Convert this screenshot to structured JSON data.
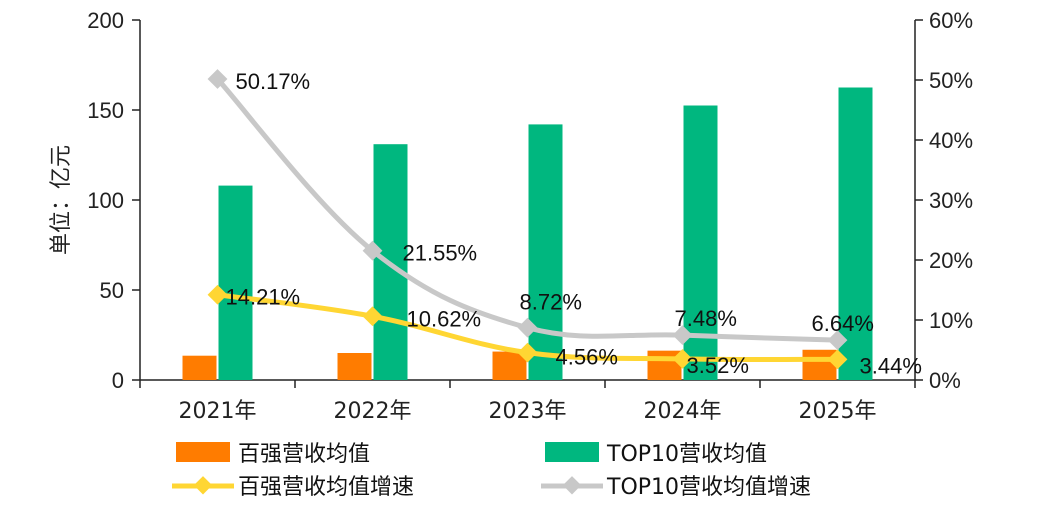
{
  "chart_data": {
    "type": "bar+line",
    "categories": [
      "2021年",
      "2022年",
      "2023年",
      "2024年",
      "2025年"
    ],
    "ylabel": "单位：亿元",
    "y_left": {
      "min": 0,
      "max": 200,
      "ticks": [
        "0",
        "50",
        "100",
        "150",
        "200"
      ]
    },
    "y_right": {
      "min": 0,
      "max": 0.6,
      "ticks": [
        "0%",
        "10%",
        "20%",
        "30%",
        "40%",
        "50%",
        "60%"
      ]
    },
    "bar_series": [
      {
        "name": "百强营收均值",
        "color": "#ff7c00",
        "values": [
          13.5,
          15,
          15.8,
          16.3,
          16.8
        ]
      },
      {
        "name": "TOP10营收均值",
        "color": "#00b77f",
        "values": [
          108,
          131,
          142,
          152.5,
          162.5
        ]
      }
    ],
    "line_series": [
      {
        "name": "百强营收均值增速",
        "color": "#ffd633",
        "values": [
          0.1421,
          0.1062,
          0.0456,
          0.0352,
          0.0344
        ],
        "labels": [
          "14.21%",
          "10.62%",
          "4.56%",
          "3.52%",
          "3.44%"
        ]
      },
      {
        "name": "TOP10营收均值增速",
        "color": "#c8c8c8",
        "values": [
          0.5017,
          0.2155,
          0.0872,
          0.0748,
          0.0664
        ],
        "labels": [
          "50.17%",
          "21.55%",
          "8.72%",
          "7.48%",
          "6.64%"
        ]
      }
    ]
  }
}
